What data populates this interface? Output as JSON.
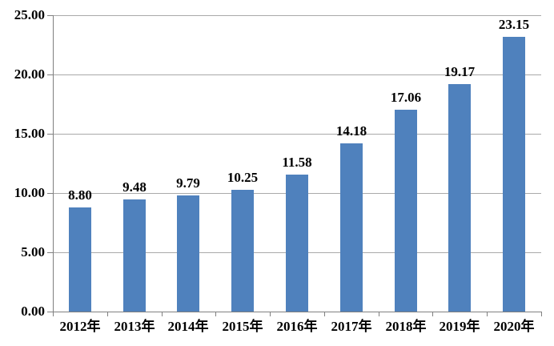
{
  "chart_data": {
    "type": "bar",
    "title": "",
    "categories": [
      "2012年",
      "2013年",
      "2014年",
      "2015年",
      "2016年",
      "2017年",
      "2018年",
      "2019年",
      "2020年"
    ],
    "values": [
      8.8,
      9.48,
      9.79,
      10.25,
      11.58,
      14.18,
      17.06,
      19.17,
      23.15
    ],
    "value_labels": [
      "8.80",
      "9.48",
      "9.79",
      "10.25",
      "11.58",
      "14.18",
      "17.06",
      "19.17",
      "23.15"
    ],
    "xlabel": "",
    "ylabel": "",
    "ylim": [
      0,
      25
    ],
    "yticks": [
      0,
      5,
      10,
      15,
      20,
      25
    ],
    "ytick_labels": [
      "0.00",
      "5.00",
      "10.00",
      "15.00",
      "20.00",
      "25.00"
    ],
    "grid": "horizontal-major",
    "legend_position": "none",
    "colors": {
      "bar": "#4F81BD",
      "gridline": "#A9A9A9",
      "axis": "#808080",
      "text": "#000000",
      "background": "#FFFFFF"
    }
  }
}
